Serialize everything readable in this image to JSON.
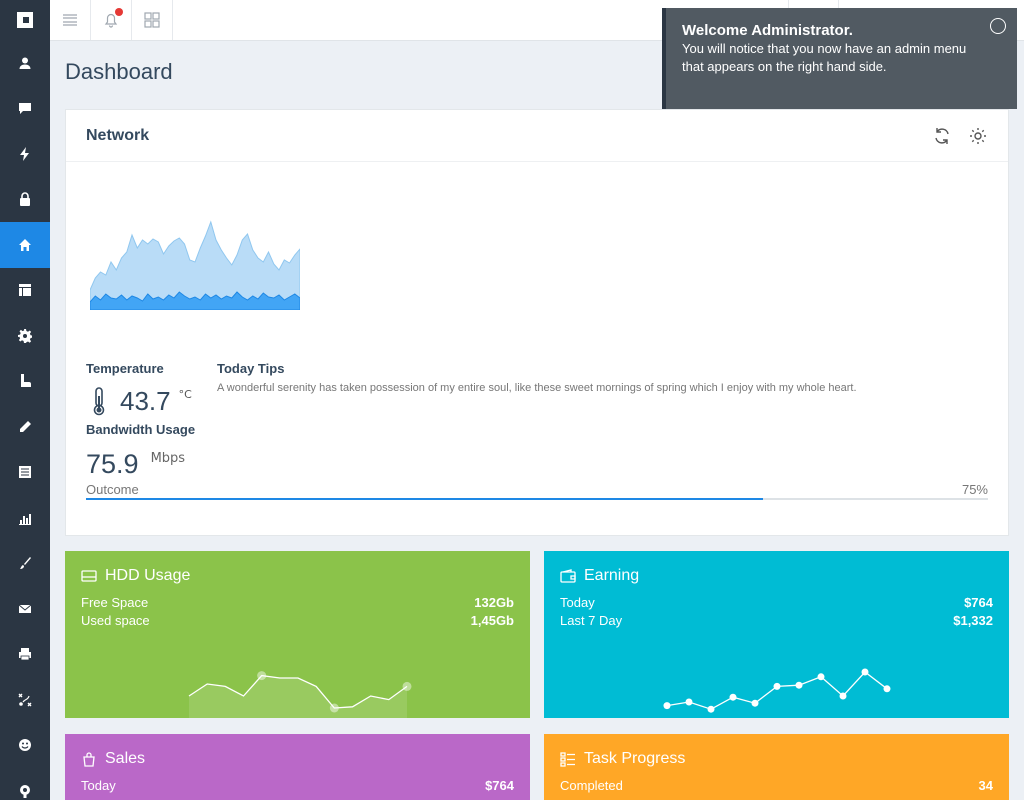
{
  "sidebar": {
    "items": [
      {
        "icon": "user-icon"
      },
      {
        "icon": "chat-icon"
      },
      {
        "icon": "bolt-icon"
      },
      {
        "icon": "lock-icon"
      },
      {
        "icon": "home-icon",
        "active": true
      },
      {
        "icon": "table-icon"
      },
      {
        "icon": "gear-icon"
      },
      {
        "icon": "boot-icon"
      },
      {
        "icon": "pencil-icon"
      },
      {
        "icon": "list-icon"
      },
      {
        "icon": "chart-icon"
      },
      {
        "icon": "brush-icon"
      },
      {
        "icon": "mail-icon"
      },
      {
        "icon": "printer-icon"
      },
      {
        "icon": "tactics-icon"
      },
      {
        "icon": "smile-icon"
      },
      {
        "icon": "support-icon"
      }
    ]
  },
  "page": {
    "title": "Dashboard"
  },
  "toast": {
    "title": "Welcome Administrator.",
    "line1": "You will notice that you now have an admin menu",
    "line2": "that appears on the right hand side."
  },
  "network": {
    "title": "Network",
    "temperature_label": "Temperature",
    "temperature_value": "43.7",
    "temperature_unit": "°C",
    "bandwidth_label": "Bandwidth Usage",
    "bandwidth_value": "75.9",
    "bandwidth_unit": "Mbps",
    "tips_title": "Today Tips",
    "tips_text": "A wonderful serenity has taken possession of my entire soul, like these sweet mornings of spring which I enjoy with my whole heart.",
    "outcome_label": "Outcome",
    "outcome_pct": "75%",
    "outcome_value": 0.75
  },
  "cards": {
    "hdd": {
      "title": "HDD Usage",
      "rows": [
        {
          "label": "Free Space",
          "value": "132Gb"
        },
        {
          "label": "Used space",
          "value": "1,45Gb"
        }
      ],
      "color": "#8bc34a"
    },
    "earning": {
      "title": "Earning",
      "rows": [
        {
          "label": "Today",
          "value": "$764"
        },
        {
          "label": "Last 7 Day",
          "value": "$1,332"
        }
      ],
      "color": "#00bcd4"
    },
    "sales": {
      "title": "Sales",
      "rows": [
        {
          "label": "Today",
          "value": "$764"
        }
      ],
      "color": "#ba68c8"
    },
    "task": {
      "title": "Task Progress",
      "rows": [
        {
          "label": "Completed",
          "value": "34"
        }
      ],
      "color": "#ffa726"
    }
  },
  "chart_data": [
    {
      "type": "area",
      "series": [
        {
          "values": [
            20,
            32,
            38,
            35,
            48,
            40,
            52,
            58,
            75,
            62,
            70,
            66,
            71,
            68,
            56,
            64,
            69,
            72,
            66,
            50,
            48,
            62,
            74,
            88,
            70,
            60,
            52,
            45,
            55,
            70,
            76,
            60,
            52,
            48,
            58,
            46,
            40,
            50,
            47,
            55,
            61
          ]
        },
        {
          "values": [
            8,
            14,
            10,
            16,
            12,
            11,
            15,
            10,
            14,
            12,
            9,
            16,
            11,
            13,
            10,
            15,
            12,
            18,
            14,
            11,
            13,
            10,
            16,
            12,
            15,
            11,
            14,
            12,
            18,
            13,
            10,
            14,
            11,
            17,
            13,
            12,
            15,
            10,
            13,
            16,
            12
          ]
        }
      ]
    },
    {
      "type": "line",
      "series": [
        {
          "values": [
            30,
            40,
            38,
            30,
            47,
            45,
            45,
            38,
            20,
            21,
            30,
            27,
            38
          ]
        }
      ]
    },
    {
      "type": "line",
      "series": [
        {
          "values": [
            22,
            25,
            19,
            29,
            24,
            38,
            39,
            46,
            30,
            50,
            36
          ]
        }
      ]
    }
  ]
}
